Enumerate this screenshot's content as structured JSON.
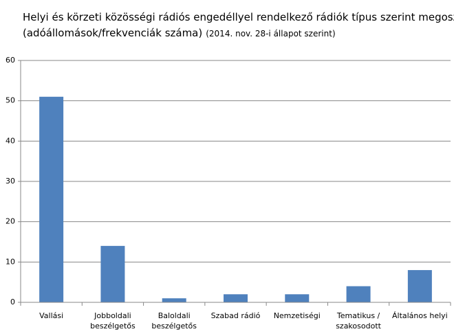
{
  "chart_data": {
    "type": "bar",
    "title": [
      "Helyi és körzeti közösségi rádiós engedéllyel  rendelkező rádiók típus szerint megoszlása",
      "(adóállomások/frekvenciák  száma)"
    ],
    "subtitle": "(2014. nov. 28-i állapot szerint)",
    "categories": [
      [
        "Vallási"
      ],
      [
        "Jobboldali",
        "beszélgetős"
      ],
      [
        "Baloldali",
        "beszélgetős"
      ],
      [
        "Szabad rádió"
      ],
      [
        "Nemzetiségi"
      ],
      [
        "Tematikus /",
        "szakosodott"
      ],
      [
        "Általános helyi"
      ]
    ],
    "values": [
      51,
      14,
      1,
      2,
      2,
      4,
      8
    ],
    "color": "#4f81bd",
    "ylim": [
      0,
      60
    ],
    "yticks": [
      0,
      10,
      20,
      30,
      40,
      50,
      60
    ],
    "grid": true
  }
}
